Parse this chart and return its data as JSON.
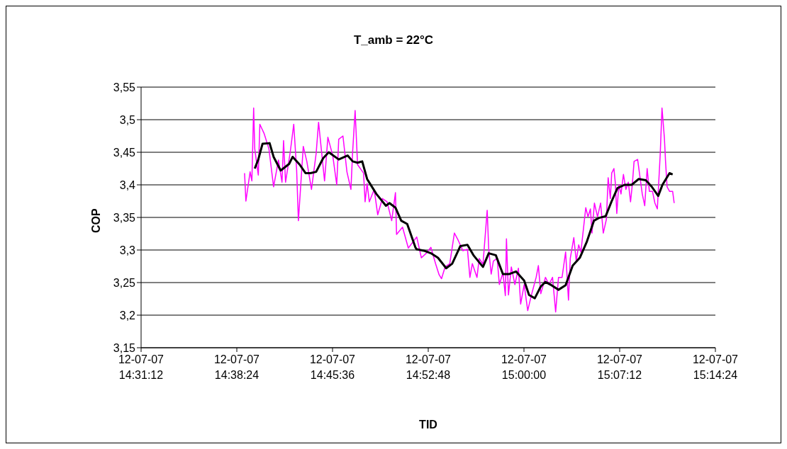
{
  "chart_data": {
    "type": "line",
    "title": "T_amb = 22°C",
    "xlabel": "TID",
    "ylabel": "COP",
    "xlim": [
      "--07-12T14:31:12",
      "--07-12T15:14:24"
    ],
    "xticks": [
      {
        "value": "--07-12T14:31:12",
        "label": "12-07-07\n14:31:12"
      },
      {
        "value": "--07-12T14:38:24",
        "label": "12-07-07\n14:38:24"
      },
      {
        "value": "--07-12T14:45:36",
        "label": "12-07-07\n14:45:36"
      },
      {
        "value": "--07-12T14:52:48",
        "label": "12-07-07\n14:52:48"
      },
      {
        "value": "--07-12T15:00:00",
        "label": "12-07-07\n15:00:00"
      },
      {
        "value": "--07-12T15:07:12",
        "label": "12-07-07\n15:07:12"
      },
      {
        "value": "--07-12T15:14:24",
        "label": "12-07-07\n15:14:24"
      }
    ],
    "ylim": [
      3.15,
      3.55
    ],
    "yticks": [
      {
        "value": 3.15,
        "label": "3,15"
      },
      {
        "value": 3.2,
        "label": "3,2"
      },
      {
        "value": 3.25,
        "label": "3,25"
      },
      {
        "value": 3.3,
        "label": "3,3"
      },
      {
        "value": 3.35,
        "label": "3,35"
      },
      {
        "value": 3.4,
        "label": "3,4"
      },
      {
        "value": 3.45,
        "label": "3,45"
      },
      {
        "value": 3.5,
        "label": "3,5"
      },
      {
        "value": 3.55,
        "label": "3,55"
      }
    ],
    "grid": "y",
    "legend": false,
    "marker": "none",
    "line_style": "solid",
    "series": [
      {
        "color": "#ff00ff",
        "x": [
          "--07-12T14:38:59",
          "--07-12T14:39:05",
          "--07-12T14:39:24",
          "--07-12T14:39:32",
          "--07-12T14:39:40",
          "--07-12T14:39:45",
          "--07-12T14:40:01",
          "--07-12T14:40:08",
          "--07-12T14:40:27",
          "--07-12T14:40:49",
          "--07-12T14:41:10",
          "--07-12T14:41:32",
          "--07-12T14:41:48",
          "--07-12T14:41:55",
          "--07-12T14:42:04",
          "--07-12T14:42:25",
          "--07-12T14:42:41",
          "--07-12T14:42:54",
          "--07-12T14:43:02",
          "--07-12T14:43:24",
          "--07-12T14:43:40",
          "--07-12T14:44:01",
          "--07-12T14:44:22",
          "--07-12T14:44:33",
          "--07-12T14:45:00",
          "--07-12T14:45:15",
          "--07-12T14:45:37",
          "--07-12T14:45:55",
          "--07-12T14:46:04",
          "--07-12T14:46:23",
          "--07-12T14:46:41",
          "--07-12T14:46:59",
          "--07-12T14:47:07",
          "--07-12T14:47:18",
          "--07-12T14:47:29",
          "--07-12T14:47:56",
          "--07-12T14:48:03",
          "--07-12T14:48:12",
          "--07-12T14:48:22",
          "--07-12T14:48:44",
          "--07-12T14:49:00",
          "--07-12T14:49:21",
          "--07-12T14:49:42",
          "--07-12T14:50:03",
          "--07-12T14:50:20",
          "--07-12T14:50:25",
          "--07-12T14:50:52",
          "--07-12T14:51:18",
          "--07-12T14:51:56",
          "--07-12T14:52:17",
          "--07-12T14:52:39",
          "--07-12T14:53:00",
          "--07-12T14:53:21",
          "--07-12T14:53:37",
          "--07-12T14:53:48",
          "--07-12T14:54:04",
          "--07-12T14:54:25",
          "--07-12T14:54:46",
          "--07-12T14:55:03",
          "--07-12T14:55:24",
          "--07-12T14:55:45",
          "--07-12T14:55:56",
          "--07-12T14:56:07",
          "--07-12T14:56:28",
          "--07-12T14:56:38",
          "--07-12T14:56:55",
          "--07-12T14:57:14",
          "--07-12T14:57:21",
          "--07-12T14:57:32",
          "--07-12T14:57:42",
          "--07-12T14:57:59",
          "--07-12T14:58:09",
          "--07-12T14:58:25",
          "--07-12T14:58:36",
          "--07-12T14:58:41",
          "--07-12T14:58:50",
          "--07-12T14:59:03",
          "--07-12T14:59:19",
          "--07-12T14:59:35",
          "--07-12T14:59:45",
          "--07-12T15:00:01",
          "--07-12T15:00:17",
          "--07-12T15:00:33",
          "--07-12T15:00:55",
          "--07-12T15:01:05",
          "--07-12T15:01:16",
          "--07-12T15:01:37",
          "--07-12T15:01:53",
          "--07-12T15:02:09",
          "--07-12T15:02:23",
          "--07-12T15:02:36",
          "--07-12T15:02:52",
          "--07-12T15:03:08",
          "--07-12T15:03:21",
          "--07-12T15:03:29",
          "--07-12T15:03:45",
          "--07-12T15:03:56",
          "--07-12T15:04:07",
          "--07-12T15:04:17",
          "--07-12T15:04:39",
          "--07-12T15:04:49",
          "--07-12T15:05:00",
          "--07-12T15:05:07",
          "--07-12T15:05:18",
          "--07-12T15:05:32",
          "--07-12T15:05:46",
          "--07-12T15:05:58",
          "--07-12T15:06:12",
          "--07-12T15:06:20",
          "--07-12T15:06:30",
          "--07-12T15:06:36",
          "--07-12T15:06:46",
          "--07-12T15:06:52",
          "--07-12T15:06:59",
          "--07-12T15:07:08",
          "--07-12T15:07:18",
          "--07-12T15:07:29",
          "--07-12T15:07:40",
          "--07-12T15:07:51",
          "--07-12T15:08:01",
          "--07-12T15:08:09",
          "--07-12T15:08:17",
          "--07-12T15:08:33",
          "--07-12T15:08:44",
          "--07-12T15:08:54",
          "--07-12T15:09:05",
          "--07-12T15:09:16",
          "--07-12T15:09:26",
          "--07-12T15:09:40",
          "--07-12T15:09:51",
          "--07-12T15:10:02",
          "--07-12T15:10:15",
          "--07-12T15:10:23",
          "--07-12T15:10:34",
          "--07-12T15:10:39",
          "--07-12T15:10:46",
          "--07-12T15:10:57",
          "--07-12T15:11:11",
          "--07-12T15:11:18"
        ],
        "values": [
          3.418,
          3.375,
          3.42,
          3.406,
          3.518,
          3.455,
          3.415,
          3.493,
          3.479,
          3.455,
          3.397,
          3.438,
          3.404,
          3.468,
          3.404,
          3.45,
          3.493,
          3.423,
          3.345,
          3.459,
          3.436,
          3.393,
          3.448,
          3.496,
          3.406,
          3.473,
          3.445,
          3.4,
          3.47,
          3.475,
          3.42,
          3.393,
          3.452,
          3.514,
          3.431,
          3.418,
          3.374,
          3.402,
          3.374,
          3.393,
          3.354,
          3.379,
          3.374,
          3.345,
          3.388,
          3.324,
          3.335,
          3.303,
          3.32,
          3.288,
          3.295,
          3.304,
          3.279,
          3.262,
          3.256,
          3.274,
          3.279,
          3.326,
          3.315,
          3.299,
          3.301,
          3.258,
          3.279,
          3.258,
          3.287,
          3.278,
          3.361,
          3.301,
          3.263,
          3.283,
          3.287,
          3.247,
          3.265,
          3.23,
          3.317,
          3.231,
          3.274,
          3.247,
          3.272,
          3.217,
          3.247,
          3.207,
          3.23,
          3.258,
          3.276,
          3.233,
          3.258,
          3.247,
          3.258,
          3.205,
          3.258,
          3.258,
          3.297,
          3.223,
          3.287,
          3.319,
          3.283,
          3.308,
          3.297,
          3.365,
          3.351,
          3.363,
          3.326,
          3.372,
          3.351,
          3.372,
          3.326,
          3.347,
          3.411,
          3.379,
          3.418,
          3.425,
          3.404,
          3.356,
          3.4,
          3.386,
          3.416,
          3.393,
          3.404,
          3.374,
          3.4,
          3.436,
          3.439,
          3.411,
          3.386,
          3.368,
          3.425,
          3.39,
          3.39,
          3.372,
          3.363,
          3.447,
          3.518,
          3.471,
          3.436,
          3.397,
          3.39,
          3.39,
          3.372
        ]
      },
      {
        "color": "#000000",
        "x": [
          "--07-12T14:39:45",
          "--07-12T14:40:01",
          "--07-12T14:40:20",
          "--07-12T14:40:52",
          "--07-12T14:41:10",
          "--07-12T14:41:42",
          "--07-12T14:42:20",
          "--07-12T14:42:36",
          "--07-12T14:43:08",
          "--07-12T14:43:34",
          "--07-12T14:43:56",
          "--07-12T14:44:22",
          "--07-12T14:44:54",
          "--07-12T14:45:19",
          "--07-12T14:46:04",
          "--07-12T14:46:44",
          "--07-12T14:47:07",
          "--07-12T14:47:29",
          "--07-12T14:47:50",
          "--07-12T14:48:12",
          "--07-12T14:48:54",
          "--07-12T14:49:37",
          "--07-12T14:49:53",
          "--07-12T14:50:20",
          "--07-12T14:50:46",
          "--07-12T14:51:13",
          "--07-12T14:51:50",
          "--07-12T14:51:56",
          "--07-12T14:52:28",
          "--07-12T14:53:00",
          "--07-12T14:53:32",
          "--07-12T14:54:09",
          "--07-12T14:54:36",
          "--07-12T14:55:13",
          "--07-12T14:55:45",
          "--07-12T14:56:12",
          "--07-12T14:56:55",
          "--07-12T14:57:21",
          "--07-12T14:57:53",
          "--07-12T14:58:25",
          "--07-12T14:58:52",
          "--07-12T14:59:24",
          "--07-12T15:00:01",
          "--07-12T15:00:23",
          "--07-12T15:00:49",
          "--07-12T15:01:16",
          "--07-12T15:01:37",
          "--07-12T15:02:04",
          "--07-12T15:02:36",
          "--07-12T15:03:08",
          "--07-12T15:03:40",
          "--07-12T15:04:12",
          "--07-12T15:04:44",
          "--07-12T15:05:16",
          "--07-12T15:05:37",
          "--07-12T15:06:09",
          "--07-12T15:06:36",
          "--07-12T15:07:02",
          "--07-12T15:07:34",
          "--07-12T15:08:06",
          "--07-12T15:08:38",
          "--07-12T15:09:10",
          "--07-12T15:09:37",
          "--07-12T15:10:06",
          "--07-12T15:10:25",
          "--07-12T15:10:57",
          "--07-12T15:11:11"
        ],
        "values": [
          3.425,
          3.439,
          3.463,
          3.464,
          3.443,
          3.422,
          3.432,
          3.443,
          3.431,
          3.418,
          3.418,
          3.42,
          3.441,
          3.45,
          3.439,
          3.445,
          3.436,
          3.434,
          3.436,
          3.409,
          3.386,
          3.368,
          3.372,
          3.365,
          3.345,
          3.34,
          3.304,
          3.301,
          3.299,
          3.295,
          3.288,
          3.272,
          3.279,
          3.306,
          3.308,
          3.292,
          3.274,
          3.295,
          3.292,
          3.263,
          3.263,
          3.267,
          3.253,
          3.231,
          3.226,
          3.244,
          3.251,
          3.246,
          3.239,
          3.246,
          3.276,
          3.288,
          3.313,
          3.345,
          3.349,
          3.352,
          3.375,
          3.395,
          3.4,
          3.4,
          3.409,
          3.407,
          3.397,
          3.383,
          3.4,
          3.418,
          3.416
        ]
      }
    ]
  }
}
